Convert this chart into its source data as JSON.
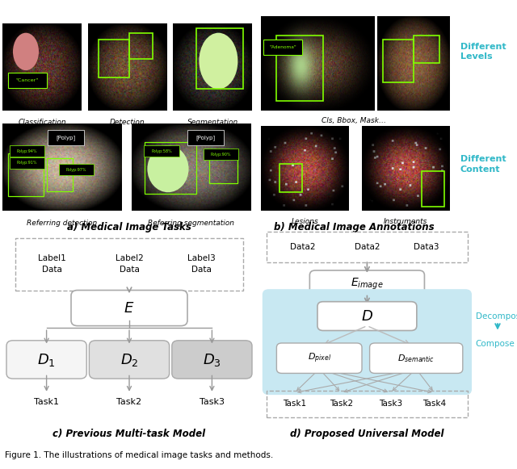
{
  "fig_width": 6.4,
  "fig_height": 5.81,
  "dpi": 100,
  "caption": "Figure 1. The illustrations of medical image tasks and methods.",
  "panel_a_title": "a) Medical Image Tasks",
  "panel_b_title": "b) Medical Image Annotations",
  "panel_c_title": "c) Previous Multi-task Model",
  "panel_d_title": "d) Proposed Universal Model",
  "panel_c_labels_top": [
    "Label1\nData",
    "Label2\nData",
    "Label3\nData"
  ],
  "panel_c_tasks": [
    "Task1",
    "Task2",
    "Task3"
  ],
  "panel_d_labels_top": [
    "Data2",
    "Data2",
    "Data3"
  ],
  "panel_d_tasks": [
    "Task1",
    "Task2",
    "Task3",
    "Task4"
  ],
  "panel_d_side_labels": [
    "Decompose",
    "Compose"
  ],
  "bg_color": "#ffffff",
  "arrow_color": "#999999",
  "teal_color": "#30b8c8",
  "green_box": "#80ff00",
  "decoder_colors": [
    "#f5f5f5",
    "#e0e0e0",
    "#cccccc"
  ],
  "blue_bg": "#c8e8f2"
}
